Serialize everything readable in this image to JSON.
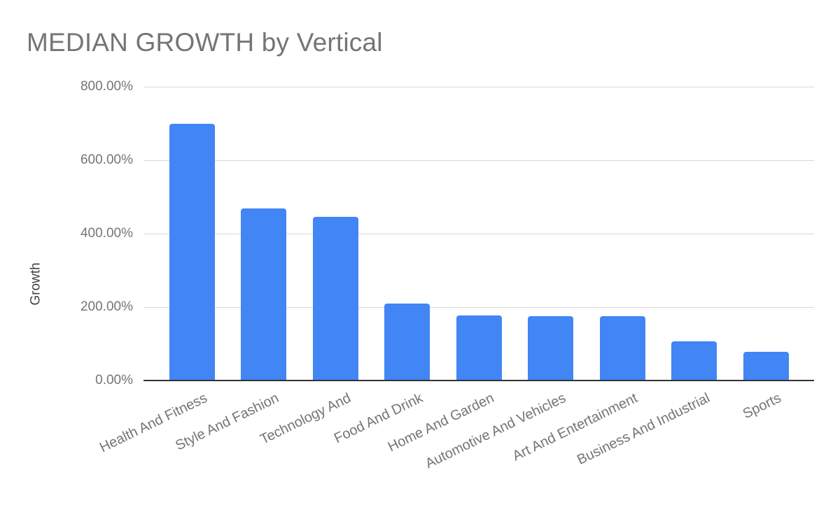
{
  "chart_data": {
    "type": "bar",
    "title": "MEDIAN GROWTH by Vertical",
    "ylabel": "Growth",
    "xlabel": "",
    "unit": "percent",
    "categories": [
      "Health And Fitness",
      "Style And Fashion",
      "Technology And",
      "Food And Drink",
      "Home And Garden",
      "Automotive And Vehicles",
      "Art And Entertainment",
      "Business And Industrial",
      "Sports"
    ],
    "values": [
      700,
      468,
      445,
      209,
      178,
      175,
      175,
      106,
      79
    ],
    "ylim": [
      0,
      800
    ],
    "y_ticks": [
      {
        "value": 800,
        "label": "800.00%"
      },
      {
        "value": 600,
        "label": "600.00%"
      },
      {
        "value": 400,
        "label": "400.00%"
      },
      {
        "value": 200,
        "label": "200.00%"
      },
      {
        "value": 0,
        "label": "0.00%"
      }
    ],
    "grid": true,
    "legend": "none",
    "x_label_rotation_deg": -26,
    "colors": {
      "bar": "#4285f4",
      "title_text": "#757575",
      "tick_text": "#757575",
      "axis_title_text": "#424242",
      "gridline": "#d8d8d8",
      "axis_line": "#333333",
      "background": "#ffffff"
    }
  }
}
